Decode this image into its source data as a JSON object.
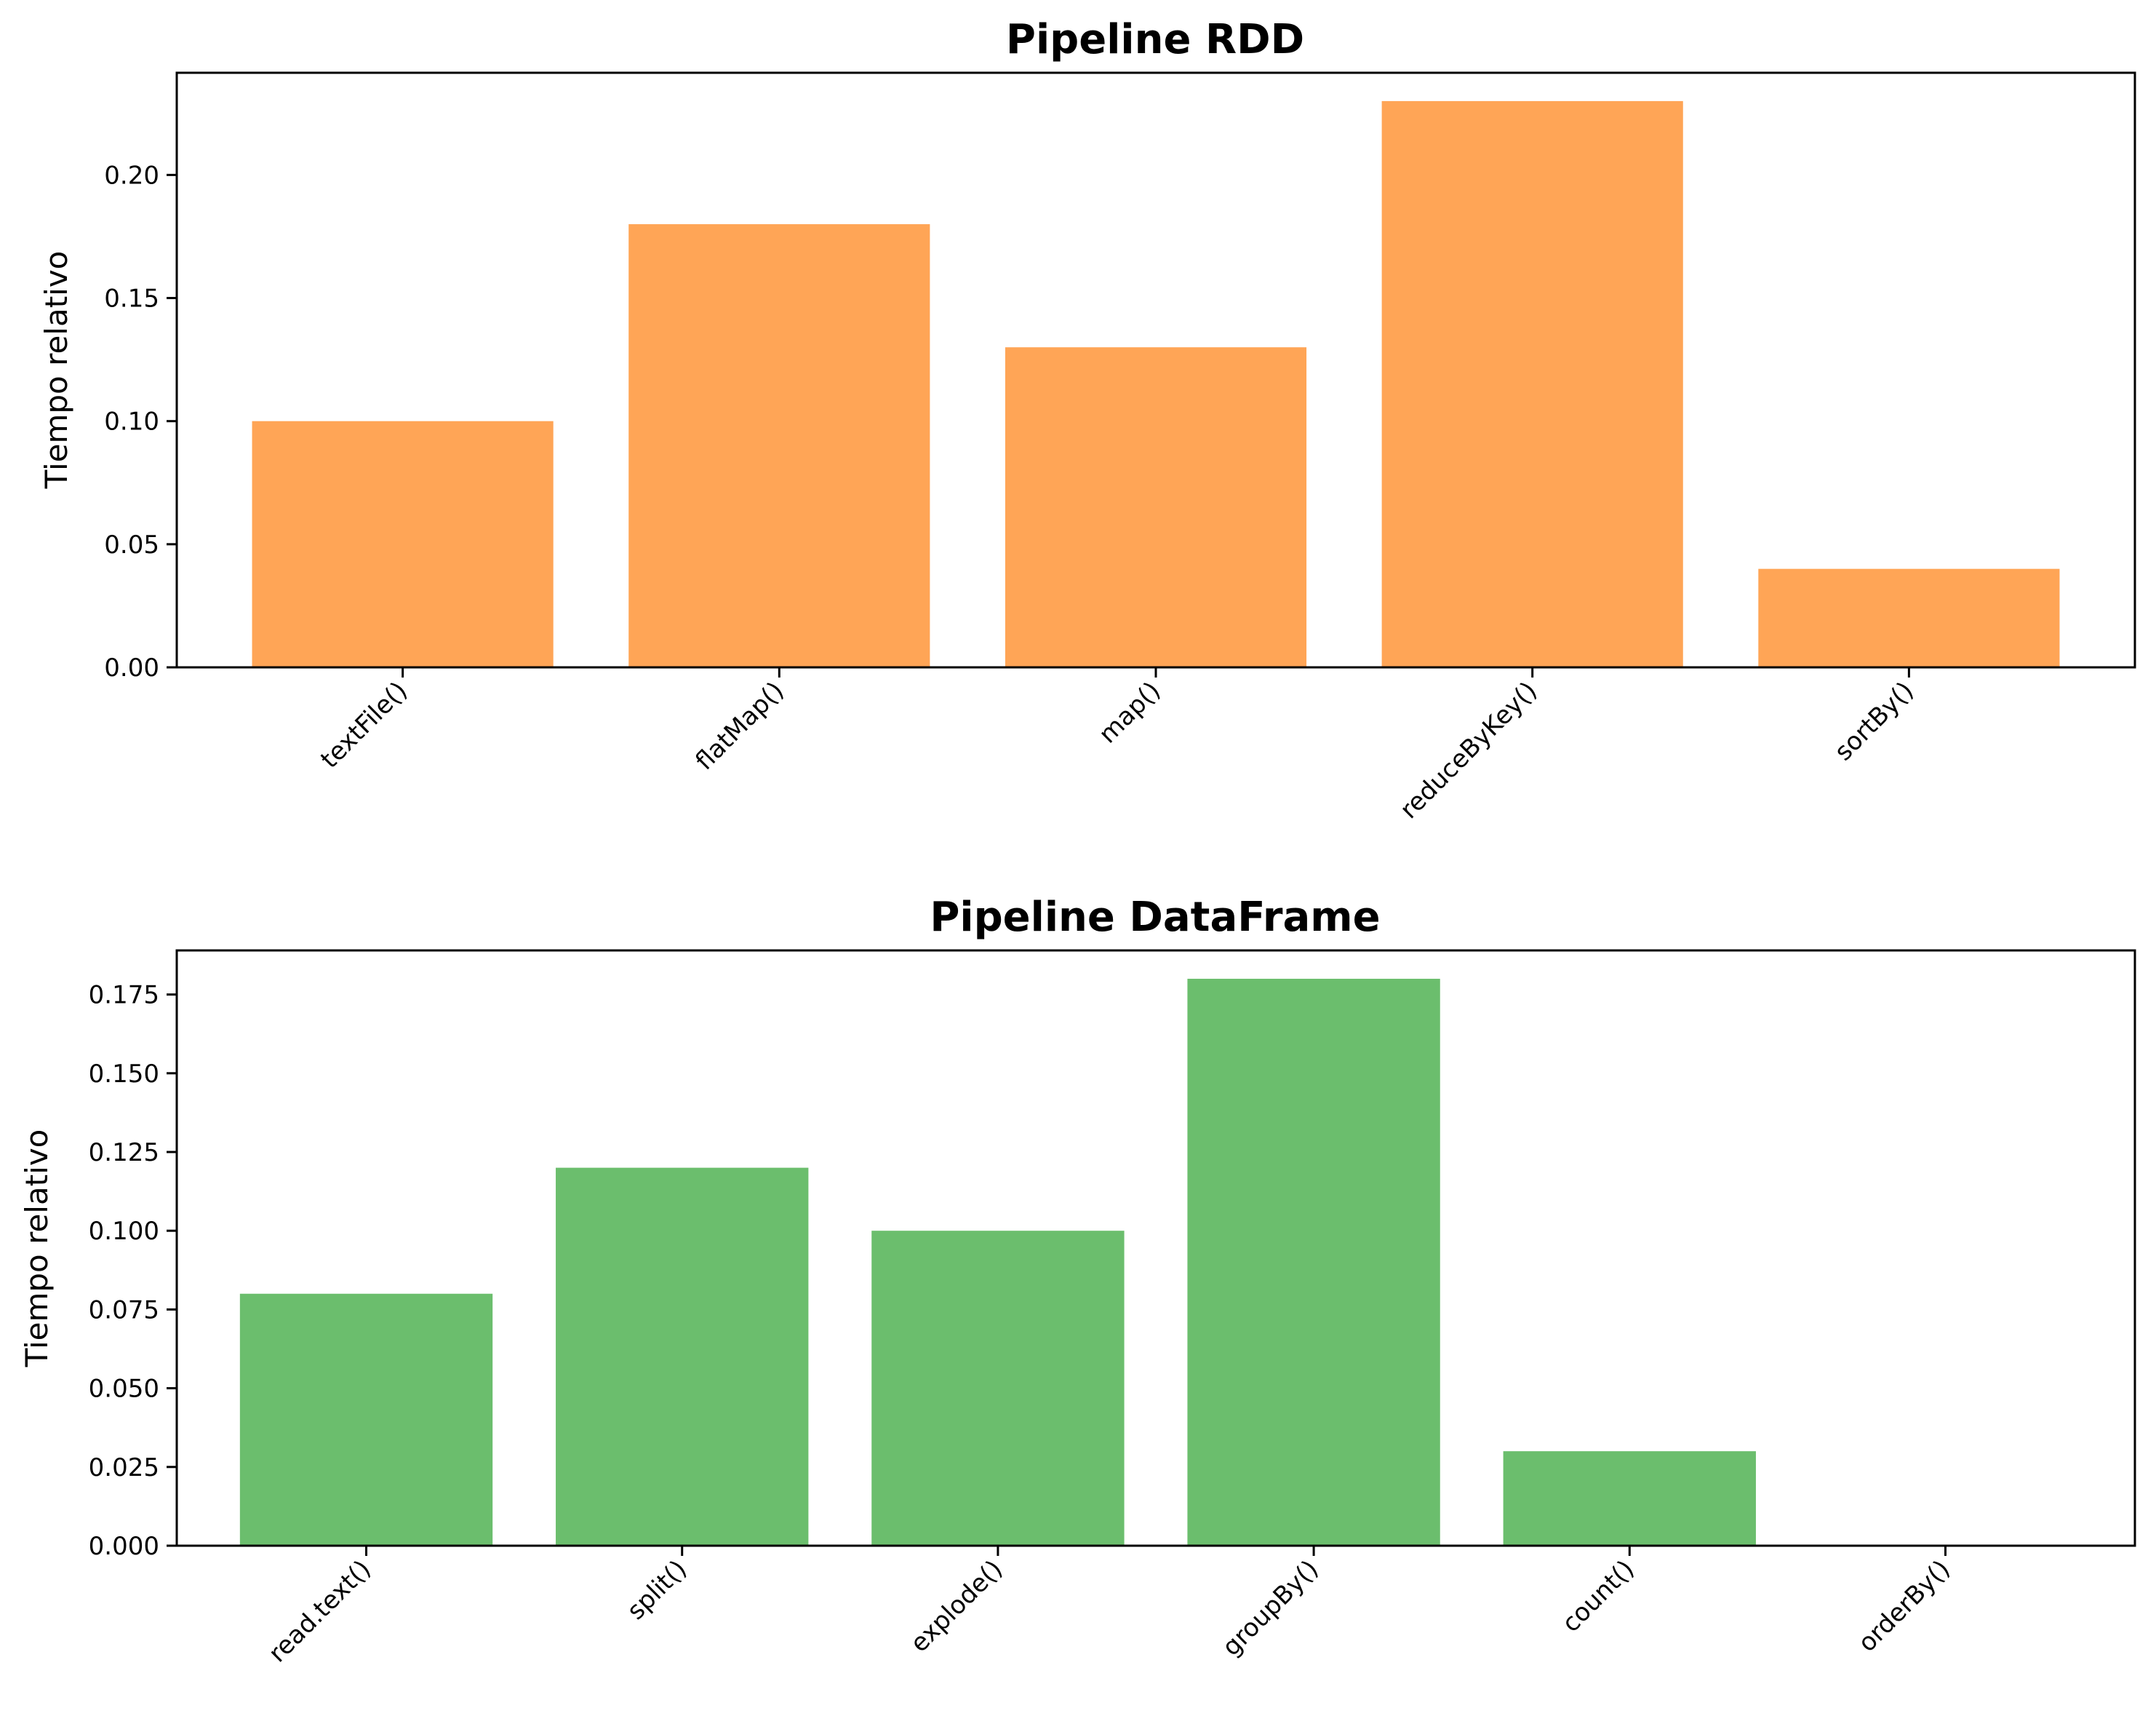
{
  "chart_data": [
    {
      "type": "bar",
      "title": "Pipeline RDD",
      "xlabel": "",
      "ylabel": "Tiempo relativo",
      "categories": [
        "textFile()",
        "flatMap()",
        "map()",
        "reduceByKey()",
        "sortBy()"
      ],
      "values": [
        0.1,
        0.18,
        0.13,
        0.23,
        0.04
      ],
      "ylim": [
        0,
        0.2415
      ],
      "yticks": [
        0.0,
        0.05,
        0.1,
        0.15,
        0.2
      ],
      "ytick_labels": [
        "0.00",
        "0.05",
        "0.10",
        "0.15",
        "0.20"
      ],
      "color": "#ffa556",
      "grid": false
    },
    {
      "type": "bar",
      "title": "Pipeline DataFrame",
      "xlabel": "",
      "ylabel": "Tiempo relativo",
      "categories": [
        "read.text()",
        "split()",
        "explode()",
        "groupBy()",
        "count()",
        "orderBy()"
      ],
      "values": [
        0.08,
        0.12,
        0.1,
        0.18,
        0.03,
        0.0
      ],
      "ylim": [
        0,
        0.189
      ],
      "yticks": [
        0.0,
        0.025,
        0.05,
        0.075,
        0.1,
        0.125,
        0.15,
        0.175
      ],
      "ytick_labels": [
        "0.000",
        "0.025",
        "0.050",
        "0.075",
        "0.100",
        "0.125",
        "0.150",
        "0.175"
      ],
      "color": "#6bbe6d",
      "grid": false
    }
  ]
}
